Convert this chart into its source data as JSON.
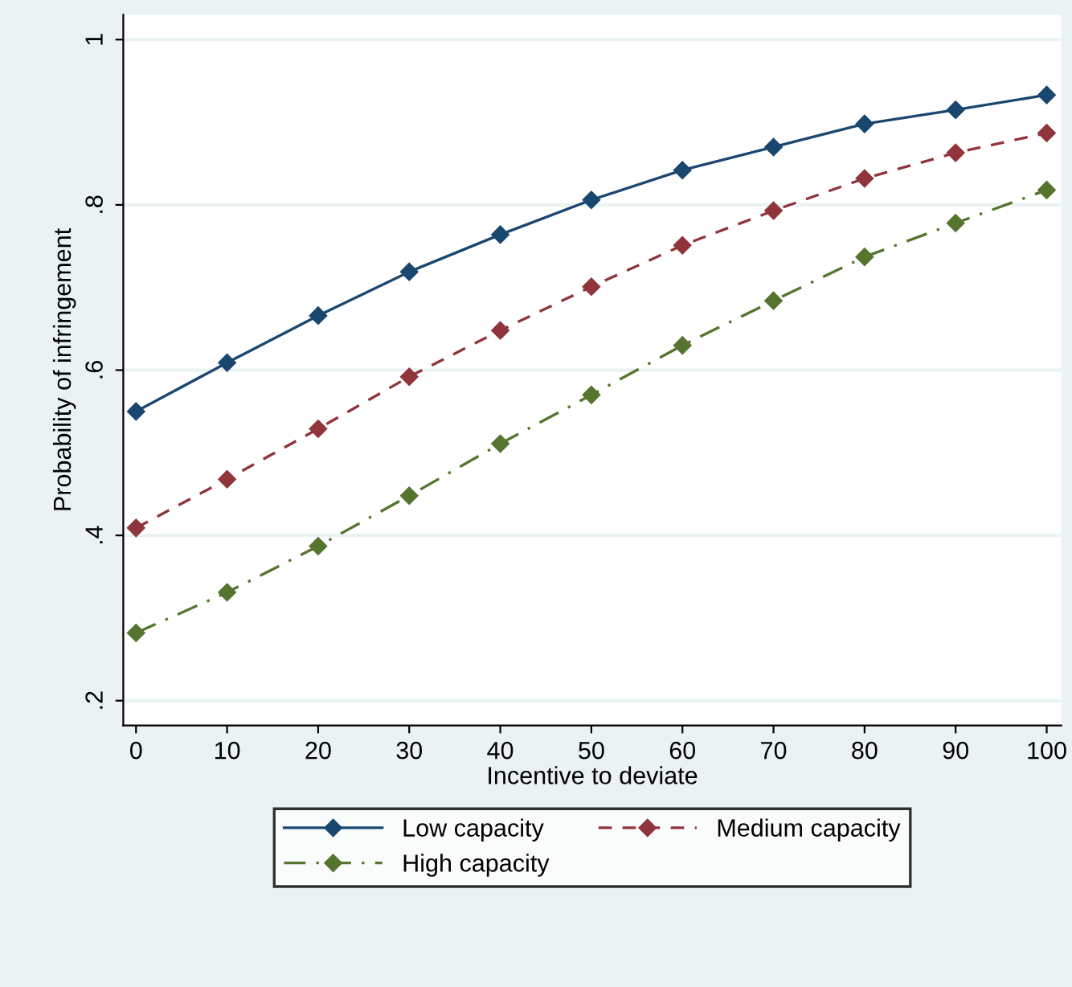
{
  "chart_data": {
    "type": "line",
    "xlabel": "Incentive to deviate",
    "ylabel": "Probability of infringement",
    "x": [
      0,
      10,
      20,
      30,
      40,
      50,
      60,
      70,
      80,
      90,
      100
    ],
    "series": [
      {
        "name": "Low capacity",
        "color": "#1a476f",
        "line_style": "solid",
        "values": [
          0.55,
          0.609,
          0.666,
          0.719,
          0.764,
          0.806,
          0.842,
          0.87,
          0.898,
          0.915,
          0.933
        ]
      },
      {
        "name": "Medium capacity",
        "color": "#90353b",
        "line_style": "dashed",
        "values": [
          0.409,
          0.468,
          0.529,
          0.592,
          0.648,
          0.701,
          0.751,
          0.793,
          0.832,
          0.863,
          0.887
        ]
      },
      {
        "name": "High capacity",
        "color": "#55752f",
        "line_style": "dashdot",
        "values": [
          0.282,
          0.331,
          0.387,
          0.448,
          0.511,
          0.57,
          0.63,
          0.684,
          0.737,
          0.778,
          0.818
        ]
      }
    ],
    "marker": "diamond",
    "grid": "y",
    "legend": "bottom",
    "xlim": [
      -1.4,
      101.6
    ],
    "xticks": [
      0,
      10,
      20,
      30,
      40,
      50,
      60,
      70,
      80,
      90,
      100
    ],
    "ylim": [
      0.17,
      1.03
    ],
    "yticks": [
      {
        "value": 0.2,
        "label": ".2"
      },
      {
        "value": 0.4,
        "label": ".4"
      },
      {
        "value": 0.6,
        "label": ".6"
      },
      {
        "value": 0.8,
        "label": ".8"
      },
      {
        "value": 1,
        "label": "1"
      }
    ]
  }
}
